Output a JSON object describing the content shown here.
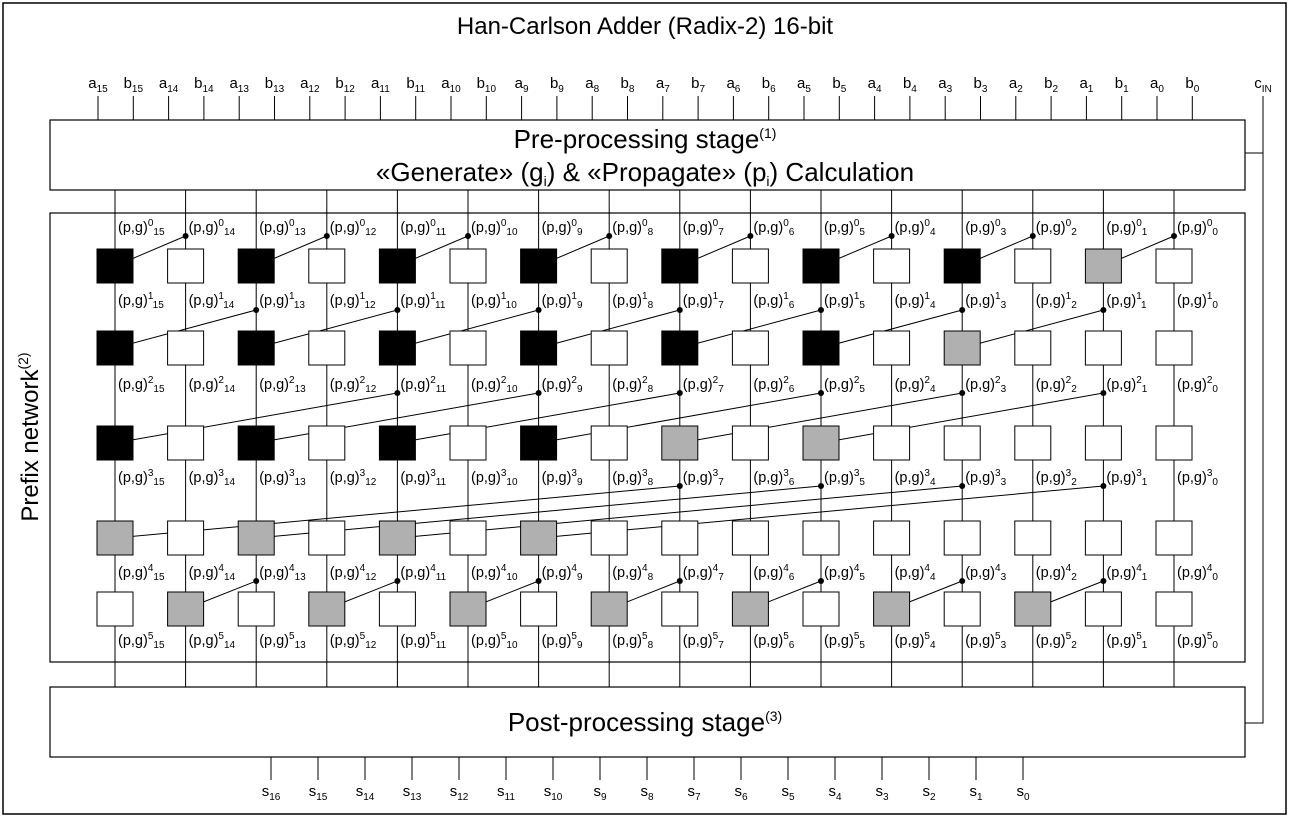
{
  "title": "Han-Carlson Adder (Radix-2) 16-bit",
  "inputs": [
    "a15",
    "b15",
    "a14",
    "b14",
    "a13",
    "b13",
    "a12",
    "b12",
    "a11",
    "b11",
    "a10",
    "b10",
    "a9",
    "b9",
    "a8",
    "b8",
    "a7",
    "b7",
    "a6",
    "b6",
    "a5",
    "b5",
    "a4",
    "b4",
    "a3",
    "b3",
    "a2",
    "b2",
    "a1",
    "b1",
    "a0",
    "b0"
  ],
  "carry_in": {
    "base": "c",
    "sub": "IN"
  },
  "preprocessing": {
    "line1": "Pre-processing stage",
    "line1_note": "(1)",
    "line2": "«Generate» (gi) & «Propagate» (pi) Calculation",
    "parts": [
      "«Generate» (g",
      "i",
      ") & «Propagate» (p",
      "i",
      ") Calculation"
    ]
  },
  "prefix_network": {
    "label": "Prefix network",
    "note": "(2)"
  },
  "postprocessing": {
    "label": "Post-processing stage",
    "note": "(3)"
  },
  "outputs": [
    "s16",
    "s15",
    "s14",
    "s13",
    "s12",
    "s11",
    "s10",
    "s9",
    "s8",
    "s7",
    "s6",
    "s5",
    "s4",
    "s3",
    "s2",
    "s1",
    "s0"
  ],
  "signal_label": "(p,g)",
  "levels": [
    {
      "level": 1,
      "connections": [
        [
          15,
          14
        ],
        [
          13,
          12
        ],
        [
          11,
          10
        ],
        [
          9,
          8
        ],
        [
          7,
          6
        ],
        [
          5,
          4
        ],
        [
          3,
          2
        ],
        [
          1,
          0
        ]
      ],
      "cells": [
        "black",
        "white",
        "black",
        "white",
        "black",
        "white",
        "black",
        "white",
        "black",
        "white",
        "black",
        "white",
        "black",
        "white",
        "gray",
        "white"
      ]
    },
    {
      "level": 2,
      "connections": [
        [
          15,
          13
        ],
        [
          13,
          11
        ],
        [
          11,
          9
        ],
        [
          9,
          7
        ],
        [
          7,
          5
        ],
        [
          5,
          3
        ],
        [
          3,
          1
        ]
      ],
      "cells": [
        "black",
        "white",
        "black",
        "white",
        "black",
        "white",
        "black",
        "white",
        "black",
        "white",
        "black",
        "white",
        "gray",
        "white",
        "white",
        "white"
      ]
    },
    {
      "level": 3,
      "connections": [
        [
          15,
          11
        ],
        [
          13,
          9
        ],
        [
          11,
          7
        ],
        [
          9,
          5
        ],
        [
          7,
          3
        ],
        [
          5,
          1
        ]
      ],
      "cells": [
        "black",
        "white",
        "black",
        "white",
        "black",
        "white",
        "black",
        "white",
        "gray",
        "white",
        "gray",
        "white",
        "white",
        "white",
        "white",
        "white"
      ]
    },
    {
      "level": 4,
      "connections": [
        [
          15,
          7
        ],
        [
          13,
          5
        ],
        [
          11,
          3
        ],
        [
          9,
          1
        ]
      ],
      "cells": [
        "gray",
        "white",
        "gray",
        "white",
        "gray",
        "white",
        "gray",
        "white",
        "white",
        "white",
        "white",
        "white",
        "white",
        "white",
        "white",
        "white"
      ]
    },
    {
      "level": 5,
      "connections": [
        [
          14,
          13
        ],
        [
          12,
          11
        ],
        [
          10,
          9
        ],
        [
          8,
          7
        ],
        [
          6,
          5
        ],
        [
          4,
          3
        ],
        [
          2,
          1
        ]
      ],
      "cells": [
        "white",
        "gray",
        "white",
        "gray",
        "white",
        "gray",
        "white",
        "gray",
        "white",
        "gray",
        "white",
        "gray",
        "white",
        "gray",
        "white",
        "white"
      ]
    }
  ],
  "colors": {
    "black": "#000000",
    "gray": "#b0b0b0",
    "white": "#ffffff",
    "line": "#000000"
  }
}
